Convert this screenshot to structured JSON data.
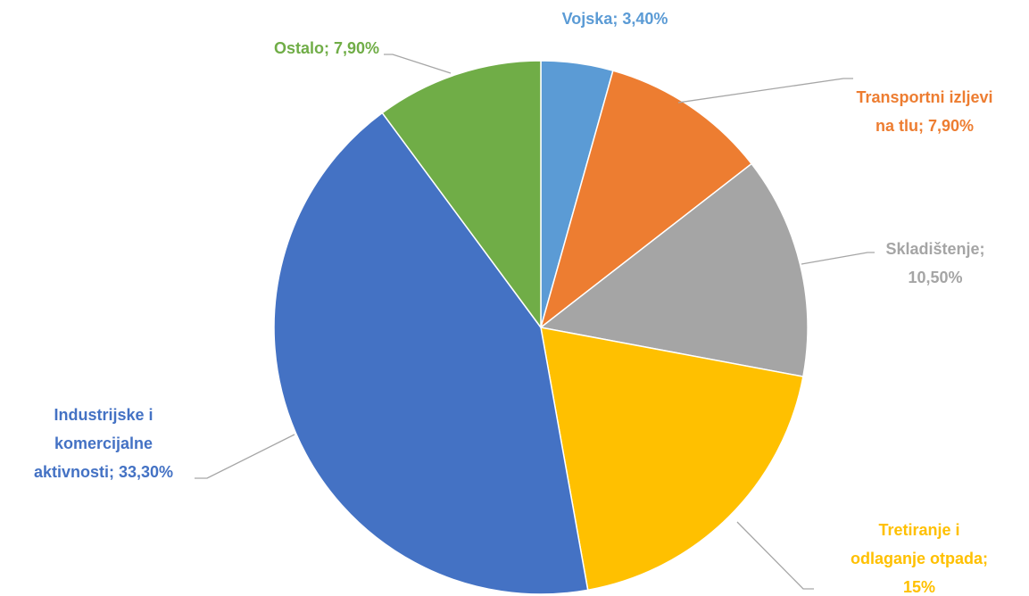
{
  "chart_data": {
    "type": "pie",
    "values": [
      3.4,
      7.9,
      10.5,
      15,
      33.3,
      7.9
    ],
    "value_labels": [
      "Vojska; 3,40%",
      "Transportni izljevi na tlu; 7,90%",
      "Skladištenje; 10,50%",
      "Tretiranje i odlaganje otpada; 15%",
      "Industrijske i komercijalne aktivnosti; 33,30%",
      "Ostalo; 7,90%"
    ],
    "colors": [
      "#5b9bd5",
      "#ed7d31",
      "#a5a5a5",
      "#ffc000",
      "#4472c4",
      "#70ad47"
    ]
  }
}
